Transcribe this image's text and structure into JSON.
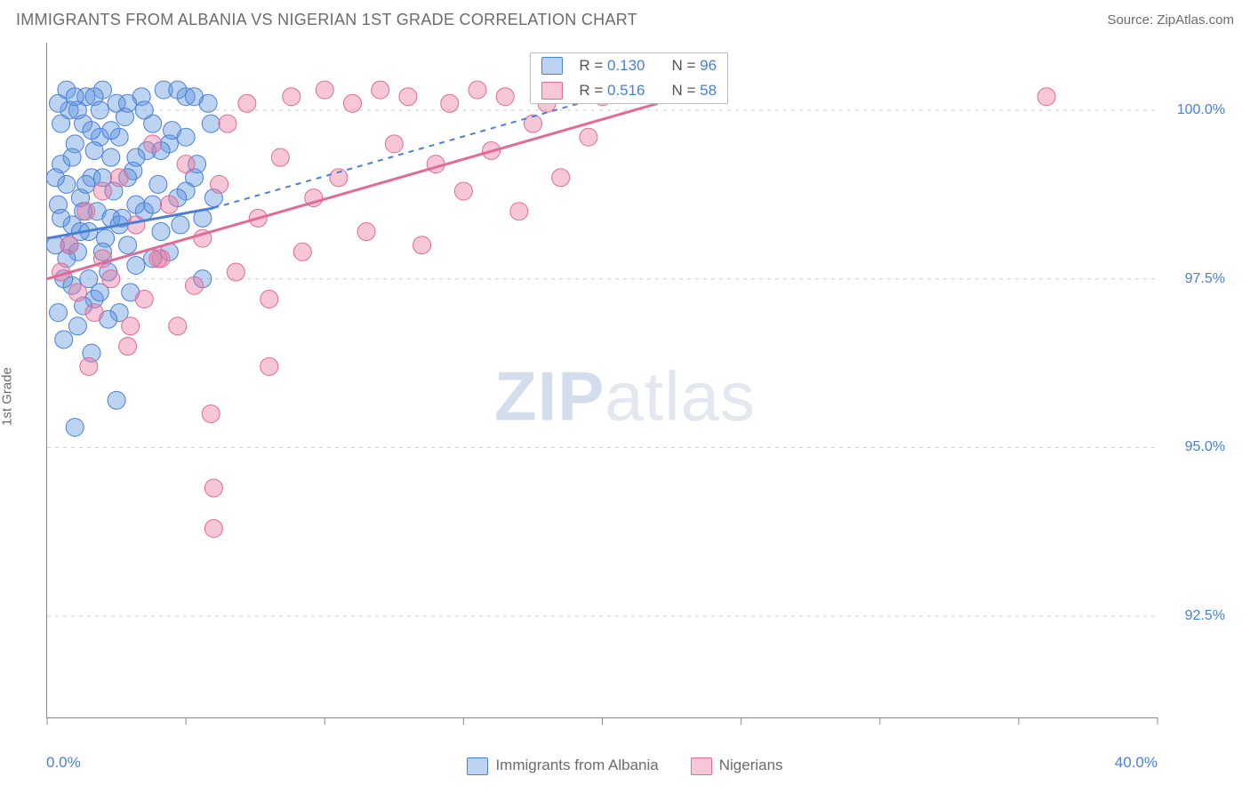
{
  "header": {
    "title": "IMMIGRANTS FROM ALBANIA VS NIGERIAN 1ST GRADE CORRELATION CHART",
    "source": "Source: ZipAtlas.com"
  },
  "chart": {
    "type": "scatter",
    "yaxis_title": "1st Grade",
    "xlim": [
      0,
      40
    ],
    "ylim": [
      91,
      101
    ],
    "xtick_label_left": "0.0%",
    "xtick_label_right": "40.0%",
    "xtick_positions_pct": [
      0,
      12.5,
      25,
      37.5,
      50,
      62.5,
      75,
      87.5,
      100
    ],
    "ytick_labels": [
      {
        "pos_pct": 90.0,
        "label": "100.0%"
      },
      {
        "pos_pct": 65.0,
        "label": "97.5%"
      },
      {
        "pos_pct": 40.0,
        "label": "95.0%"
      },
      {
        "pos_pct": 15.0,
        "label": "92.5%"
      }
    ],
    "grid_color": "#cfcfcf",
    "background": "#ffffff",
    "marker_radius": 10,
    "marker_opacity": 0.42,
    "series": [
      {
        "id": "albania",
        "label": "Immigrants from Albania",
        "color_fill": "rgba(95,150,225,0.42)",
        "color_stroke": "#4a7fd6",
        "r_label": "R =",
        "r_value": "0.130",
        "n_label": "N =",
        "n_value": "96",
        "trend_solid": {
          "x1": 0,
          "y1": 98.1,
          "x2": 6,
          "y2": 98.55
        },
        "trend_dash": {
          "x1": 6,
          "y1": 98.55,
          "x2": 20,
          "y2": 100.2
        },
        "points": [
          [
            0.3,
            98.0
          ],
          [
            0.4,
            98.6
          ],
          [
            0.5,
            99.2
          ],
          [
            0.6,
            97.5
          ],
          [
            0.7,
            98.9
          ],
          [
            0.8,
            100.0
          ],
          [
            0.9,
            98.3
          ],
          [
            1.0,
            99.5
          ],
          [
            1.1,
            97.9
          ],
          [
            1.2,
            98.7
          ],
          [
            1.3,
            99.8
          ],
          [
            1.4,
            100.2
          ],
          [
            1.5,
            98.2
          ],
          [
            1.6,
            99.0
          ],
          [
            1.7,
            97.2
          ],
          [
            1.8,
            98.5
          ],
          [
            1.9,
            99.6
          ],
          [
            2.0,
            100.3
          ],
          [
            2.1,
            98.1
          ],
          [
            2.2,
            97.6
          ],
          [
            2.3,
            99.3
          ],
          [
            2.4,
            98.8
          ],
          [
            2.5,
            100.1
          ],
          [
            2.6,
            97.0
          ],
          [
            2.7,
            98.4
          ],
          [
            2.8,
            99.9
          ],
          [
            2.9,
            98.0
          ],
          [
            3.0,
            97.3
          ],
          [
            3.1,
            99.1
          ],
          [
            3.2,
            98.6
          ],
          [
            3.4,
            100.2
          ],
          [
            3.6,
            99.4
          ],
          [
            3.8,
            97.8
          ],
          [
            4.0,
            98.9
          ],
          [
            4.2,
            100.3
          ],
          [
            4.5,
            99.7
          ],
          [
            4.8,
            98.3
          ],
          [
            5.0,
            100.2
          ],
          [
            5.3,
            99.0
          ],
          [
            5.6,
            97.5
          ],
          [
            6.0,
            98.7
          ],
          [
            0.4,
            97.0
          ],
          [
            0.6,
            96.6
          ],
          [
            0.9,
            97.4
          ],
          [
            1.1,
            96.8
          ],
          [
            1.3,
            97.1
          ],
          [
            1.6,
            96.4
          ],
          [
            1.9,
            97.3
          ],
          [
            2.2,
            96.9
          ],
          [
            2.5,
            95.7
          ],
          [
            1.0,
            95.3
          ],
          [
            1.5,
            97.5
          ],
          [
            0.8,
            98.0
          ],
          [
            0.5,
            98.4
          ],
          [
            1.2,
            98.2
          ],
          [
            1.7,
            99.4
          ],
          [
            2.0,
            99.0
          ],
          [
            2.3,
            98.4
          ],
          [
            2.6,
            99.6
          ],
          [
            2.9,
            100.1
          ],
          [
            3.2,
            99.3
          ],
          [
            3.5,
            98.5
          ],
          [
            3.8,
            99.8
          ],
          [
            4.1,
            98.2
          ],
          [
            4.4,
            99.5
          ],
          [
            4.7,
            100.3
          ],
          [
            5.0,
            98.8
          ],
          [
            5.4,
            99.2
          ],
          [
            5.8,
            100.1
          ],
          [
            0.3,
            99.0
          ],
          [
            0.5,
            99.8
          ],
          [
            0.7,
            97.8
          ],
          [
            0.9,
            99.3
          ],
          [
            1.1,
            100.0
          ],
          [
            1.4,
            98.9
          ],
          [
            1.7,
            100.2
          ],
          [
            2.0,
            97.9
          ],
          [
            2.3,
            99.7
          ],
          [
            2.6,
            98.3
          ],
          [
            2.9,
            99.0
          ],
          [
            3.2,
            97.7
          ],
          [
            3.5,
            100.0
          ],
          [
            3.8,
            98.6
          ],
          [
            4.1,
            99.4
          ],
          [
            4.4,
            97.9
          ],
          [
            4.7,
            98.7
          ],
          [
            5.0,
            99.6
          ],
          [
            5.3,
            100.2
          ],
          [
            5.6,
            98.4
          ],
          [
            5.9,
            99.8
          ],
          [
            0.4,
            100.1
          ],
          [
            0.7,
            100.3
          ],
          [
            1.0,
            100.2
          ],
          [
            1.3,
            98.5
          ],
          [
            1.6,
            99.7
          ],
          [
            1.9,
            100.0
          ]
        ]
      },
      {
        "id": "nigerians",
        "label": "Nigerians",
        "color_fill": "rgba(235,120,160,0.42)",
        "color_stroke": "#e26a96",
        "r_label": "R =",
        "r_value": "0.516",
        "n_label": "N =",
        "n_value": "58",
        "trend_solid": {
          "x1": 0,
          "y1": 97.5,
          "x2": 22,
          "y2": 100.1
        },
        "trend_dash": null,
        "points": [
          [
            0.5,
            97.6
          ],
          [
            0.8,
            98.0
          ],
          [
            1.1,
            97.3
          ],
          [
            1.4,
            98.5
          ],
          [
            1.7,
            97.0
          ],
          [
            2.0,
            98.8
          ],
          [
            2.3,
            97.5
          ],
          [
            2.6,
            99.0
          ],
          [
            2.9,
            96.5
          ],
          [
            3.2,
            98.3
          ],
          [
            3.5,
            97.2
          ],
          [
            3.8,
            99.5
          ],
          [
            4.1,
            97.8
          ],
          [
            4.4,
            98.6
          ],
          [
            4.7,
            96.8
          ],
          [
            5.0,
            99.2
          ],
          [
            5.3,
            97.4
          ],
          [
            5.6,
            98.1
          ],
          [
            5.9,
            95.5
          ],
          [
            6.2,
            98.9
          ],
          [
            6.5,
            99.8
          ],
          [
            6.8,
            97.6
          ],
          [
            7.2,
            100.1
          ],
          [
            7.6,
            98.4
          ],
          [
            8.0,
            96.2
          ],
          [
            8.4,
            99.3
          ],
          [
            8.8,
            100.2
          ],
          [
            9.2,
            97.9
          ],
          [
            9.6,
            98.7
          ],
          [
            10.0,
            100.3
          ],
          [
            10.5,
            99.0
          ],
          [
            11.0,
            100.1
          ],
          [
            11.5,
            98.2
          ],
          [
            12.0,
            100.3
          ],
          [
            12.5,
            99.5
          ],
          [
            13.0,
            100.2
          ],
          [
            13.5,
            98.0
          ],
          [
            14.0,
            99.2
          ],
          [
            14.5,
            100.1
          ],
          [
            15.0,
            98.8
          ],
          [
            15.5,
            100.3
          ],
          [
            16.0,
            99.4
          ],
          [
            16.5,
            100.2
          ],
          [
            17.0,
            98.5
          ],
          [
            17.5,
            99.8
          ],
          [
            18.0,
            100.1
          ],
          [
            18.5,
            99.0
          ],
          [
            19.0,
            100.3
          ],
          [
            19.5,
            99.6
          ],
          [
            20.0,
            100.2
          ],
          [
            6.0,
            93.8
          ],
          [
            6.0,
            94.4
          ],
          [
            4.0,
            97.8
          ],
          [
            3.0,
            96.8
          ],
          [
            2.0,
            97.8
          ],
          [
            1.5,
            96.2
          ],
          [
            36.0,
            100.2
          ],
          [
            8.0,
            97.2
          ]
        ]
      }
    ],
    "legend_box": {
      "left_pct": 43.5,
      "top_pct": 1.5
    },
    "bottom_legend": [
      {
        "series": "albania"
      },
      {
        "series": "nigerians"
      }
    ],
    "watermark": {
      "bold": "ZIP",
      "rest": "atlas"
    }
  }
}
